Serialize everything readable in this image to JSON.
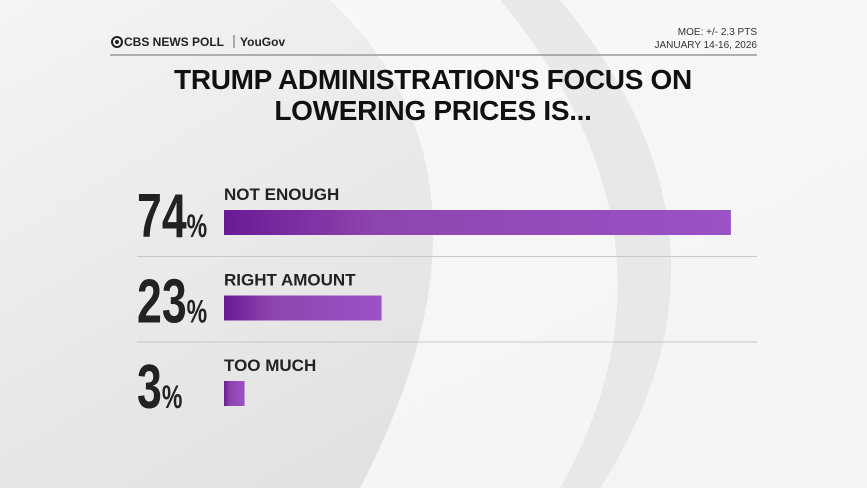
{
  "header": {
    "brand": "CBS NEWS POLL",
    "partner": "YouGov",
    "moe": "MOE: +/- 2.3 PTS",
    "dates": "JANUARY 14-16, 2026"
  },
  "chart_data": {
    "type": "bar",
    "title": "TRUMP ADMINISTRATION'S FOCUS ON LOWERING PRICES IS...",
    "categories": [
      "NOT ENOUGH",
      "RIGHT AMOUNT",
      "TOO MUCH"
    ],
    "values": [
      74,
      23,
      3
    ],
    "value_labels": [
      "74%",
      "23%",
      "3%"
    ],
    "color": "#8e44ad"
  }
}
